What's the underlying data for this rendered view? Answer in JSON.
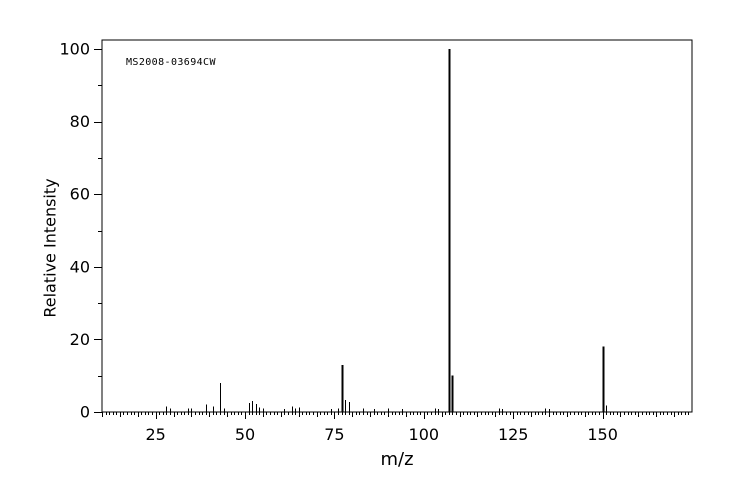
{
  "figure": {
    "annotation": "MS2008-03694CW",
    "xlabel": "m/z",
    "ylabel": "Relative Intensity"
  },
  "chart_data": {
    "type": "bar",
    "subtype": "mass-spectrum",
    "title": "",
    "annotation": "MS2008-03694CW",
    "xlabel": "m/z",
    "ylabel": "Relative Intensity",
    "xlim": [
      10,
      175
    ],
    "ylim": [
      0,
      100
    ],
    "x_major_ticks": [
      25,
      50,
      75,
      100,
      125,
      150
    ],
    "x_medium_step": 5,
    "x_minor_step": 1,
    "y_major_ticks": [
      0,
      20,
      40,
      60,
      80,
      100
    ],
    "y_minor_step": 10,
    "grid": false,
    "legend": false,
    "axis_color": "#000000",
    "bar_color": "#000000",
    "background_color": "#ffffff",
    "peaks": [
      [
        28,
        1.5
      ],
      [
        29,
        1
      ],
      [
        34,
        1
      ],
      [
        35,
        1
      ],
      [
        39,
        2
      ],
      [
        41,
        1.5
      ],
      [
        43,
        8
      ],
      [
        44,
        1
      ],
      [
        51,
        2.5
      ],
      [
        52,
        3
      ],
      [
        53,
        2.2
      ],
      [
        54,
        1.2
      ],
      [
        55,
        1
      ],
      [
        61,
        0.8
      ],
      [
        63,
        1.5
      ],
      [
        64,
        1
      ],
      [
        65,
        1.3
      ],
      [
        74,
        0.8
      ],
      [
        76,
        1
      ],
      [
        77,
        13
      ],
      [
        78,
        3.3
      ],
      [
        79,
        2.8
      ],
      [
        83,
        1
      ],
      [
        86,
        0.8
      ],
      [
        90,
        1
      ],
      [
        94,
        0.8
      ],
      [
        103,
        1
      ],
      [
        104,
        0.8
      ],
      [
        107,
        100
      ],
      [
        108,
        10
      ],
      [
        121,
        1
      ],
      [
        122,
        0.8
      ],
      [
        134,
        1
      ],
      [
        135,
        0.8
      ],
      [
        150,
        18
      ],
      [
        151,
        1.8
      ]
    ]
  }
}
